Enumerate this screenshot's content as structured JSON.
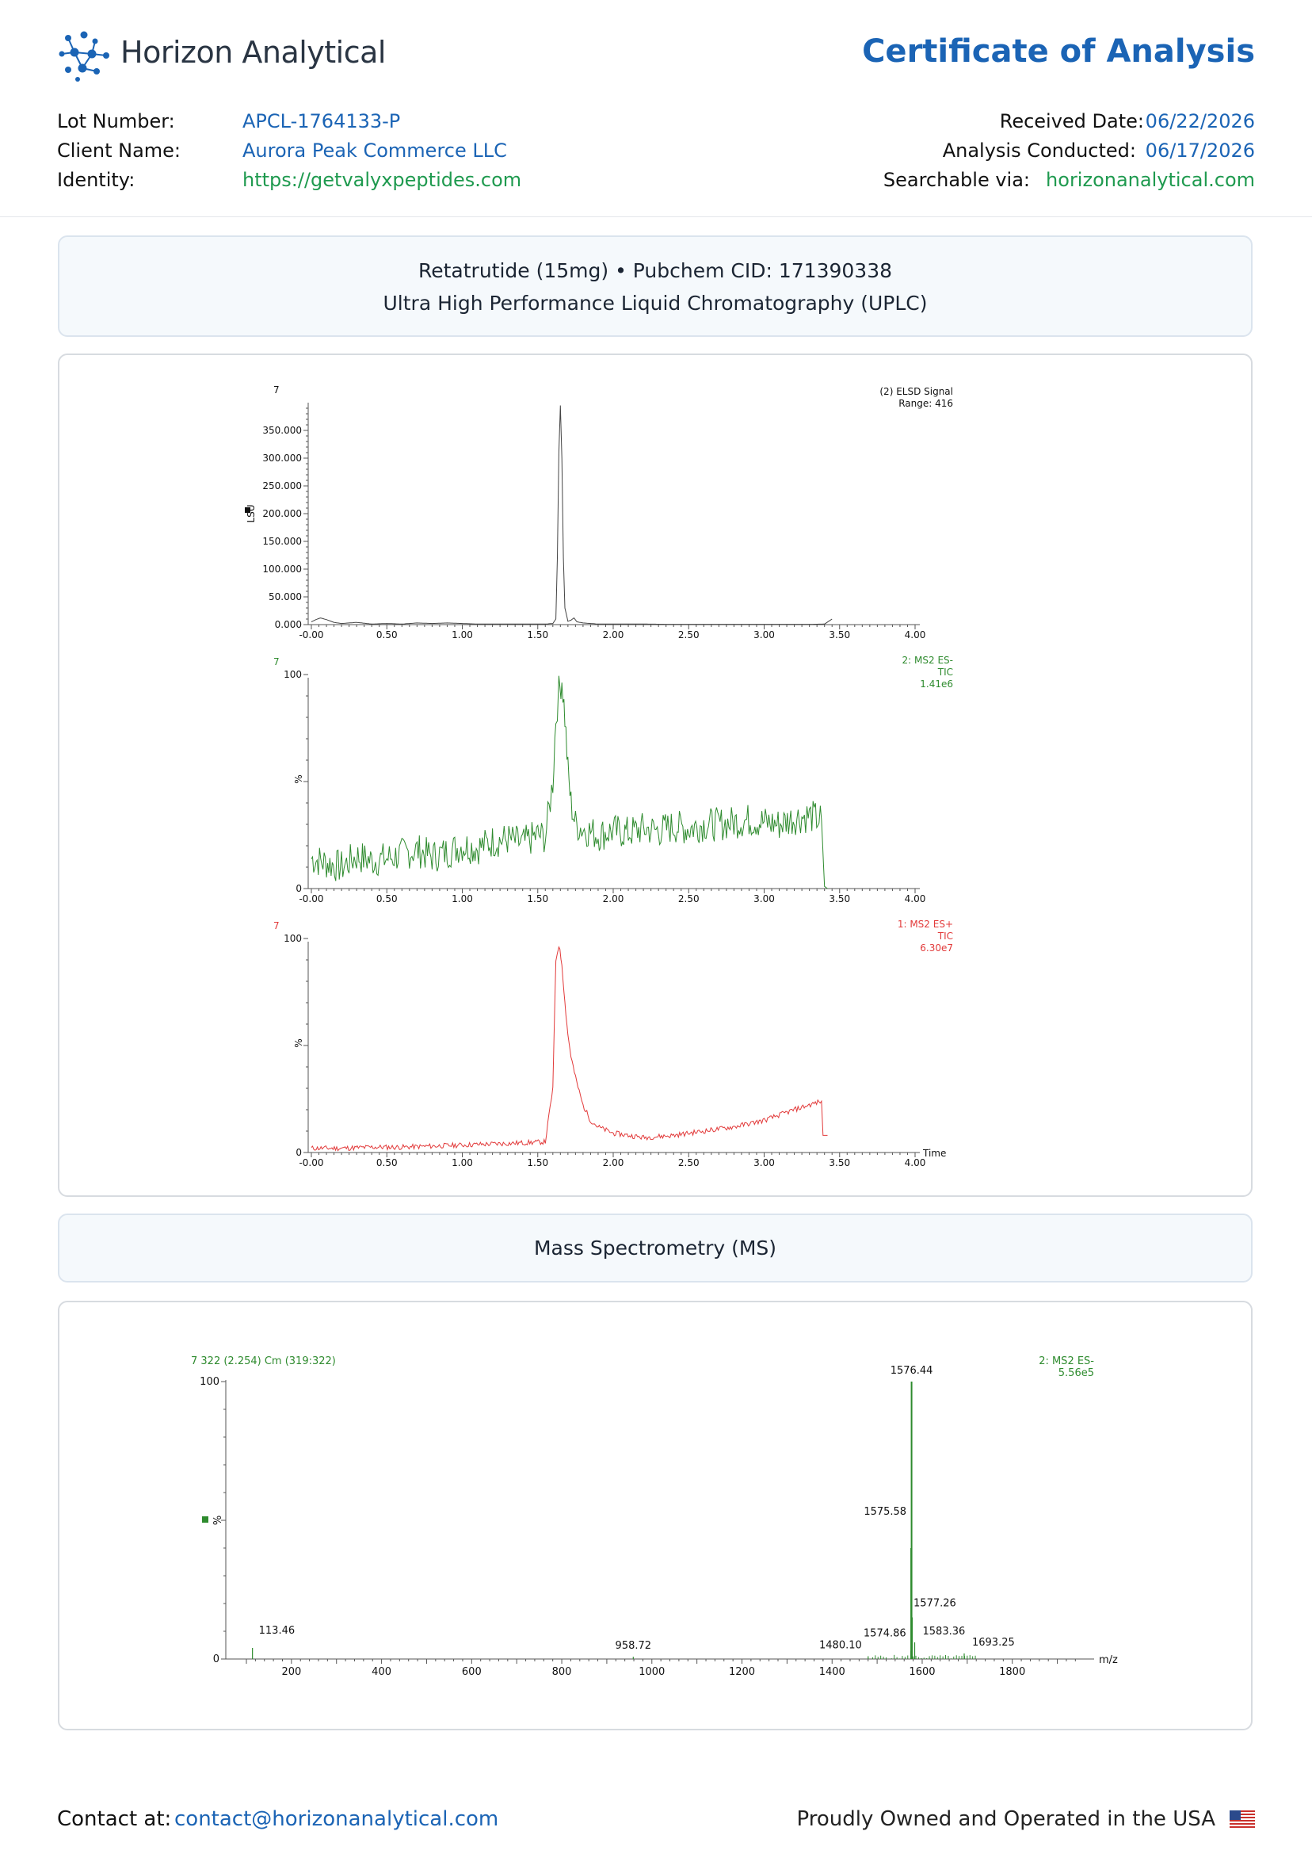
{
  "header": {
    "brand": "Horizon Analytical",
    "title": "Certificate of Analysis",
    "left_meta": [
      {
        "label": "Lot Number:",
        "value": "APCL-1764133-P",
        "color": "#1b64b5"
      },
      {
        "label": "Client Name:",
        "value": "Aurora Peak Commerce LLC",
        "color": "#1b64b5"
      },
      {
        "label": "Identity:",
        "value": "https://getvalyxpeptides.com",
        "color": "#1f9a4f"
      }
    ],
    "right_meta": [
      {
        "label": "Received Date:",
        "value": "06/22/2026",
        "color": "#1b64b5"
      },
      {
        "label": "Analysis Conducted:",
        "value": "06/17/2026",
        "color": "#1b64b5"
      },
      {
        "label": "Searchable via:",
        "value": "horizonanalytical.com",
        "color": "#1f9a4f"
      }
    ]
  },
  "uplc_box": {
    "line1": "Retatrutide (15mg) • Pubchem CID: 171390338",
    "line2": "Ultra High Performance Liquid Chromatography (UPLC)"
  },
  "ms_box": {
    "line1": "Mass Spectrometry (MS)"
  },
  "footer": {
    "contact_label": "Contact at:",
    "contact_email": "contact@horizonanalytical.com",
    "tagline": "Proudly Owned and Operated in the USA"
  },
  "chart_data": [
    {
      "type": "line",
      "panel": "elsd",
      "corner_label": "7",
      "legend": [
        "(2) ELSD Signal",
        "Range: 416"
      ],
      "ylabel": "LSU",
      "xlim": [
        0,
        4.0
      ],
      "ylim": [
        0,
        400
      ],
      "yticks": [
        "350.000",
        "300.000",
        "250.000",
        "200.000",
        "150.000",
        "100.000",
        "50.000",
        "0.000"
      ],
      "xticks": [
        "-0.00",
        "0.50",
        "1.00",
        "1.50",
        "2.00",
        "2.50",
        "3.00",
        "3.50",
        "4.00"
      ],
      "color": "#444444",
      "x": [
        0.0,
        0.03,
        0.06,
        0.1,
        0.15,
        0.2,
        0.3,
        0.4,
        0.5,
        0.6,
        0.7,
        0.8,
        0.9,
        1.0,
        1.1,
        1.2,
        1.3,
        1.4,
        1.5,
        1.55,
        1.6,
        1.62,
        1.63,
        1.64,
        1.65,
        1.66,
        1.67,
        1.68,
        1.7,
        1.72,
        1.74,
        1.76,
        1.8,
        1.9,
        2.0,
        2.2,
        2.4,
        2.6,
        2.8,
        3.0,
        3.2,
        3.3,
        3.4,
        3.45
      ],
      "y": [
        5,
        9,
        12,
        9,
        4,
        2,
        4,
        1,
        2,
        1,
        3,
        2,
        3,
        2,
        1,
        1,
        1,
        1,
        1,
        1,
        2,
        10,
        120,
        310,
        395,
        300,
        120,
        30,
        6,
        8,
        12,
        5,
        3,
        1,
        1,
        1,
        0.5,
        0.5,
        0.5,
        0.5,
        0.5,
        0.5,
        1,
        10
      ]
    },
    {
      "type": "line",
      "panel": "ms2-es-minus",
      "corner_label": "7",
      "legend": [
        "2: MS2 ES-",
        "TIC",
        "1.41e6"
      ],
      "ylabel": "%",
      "xlim": [
        0,
        4.0
      ],
      "ylim": [
        0,
        100
      ],
      "yticks": [
        "100",
        "0"
      ],
      "xticks": [
        "-0.00",
        "0.50",
        "1.00",
        "1.50",
        "2.00",
        "2.50",
        "3.00",
        "3.50",
        "4.00"
      ],
      "color": "#2e8b2e",
      "x": [
        0.0,
        0.1,
        0.2,
        0.3,
        0.4,
        0.5,
        0.6,
        0.7,
        0.8,
        0.9,
        1.0,
        1.1,
        1.2,
        1.3,
        1.4,
        1.5,
        1.55,
        1.6,
        1.62,
        1.64,
        1.66,
        1.68,
        1.7,
        1.72,
        1.75,
        1.8,
        1.9,
        2.0,
        2.1,
        2.2,
        2.3,
        2.4,
        2.5,
        2.6,
        2.7,
        2.8,
        2.9,
        3.0,
        3.1,
        3.2,
        3.3,
        3.38,
        3.4,
        3.42
      ],
      "y": [
        14,
        12,
        10,
        15,
        13,
        14,
        16,
        18,
        15,
        17,
        20,
        19,
        22,
        23,
        21,
        25,
        24,
        50,
        80,
        92,
        98,
        80,
        55,
        40,
        30,
        28,
        25,
        27,
        26,
        28,
        27,
        29,
        28,
        30,
        30,
        31,
        32,
        31,
        30,
        33,
        34,
        32,
        1,
        0
      ],
      "noise": 8
    },
    {
      "type": "line",
      "panel": "ms2-es-plus",
      "corner_label": "7",
      "legend": [
        "1: MS2 ES+",
        "TIC",
        "6.30e7"
      ],
      "ylabel": "%",
      "xlabel": "Time",
      "xlim": [
        0,
        4.0
      ],
      "ylim": [
        0,
        100
      ],
      "yticks": [
        "100",
        "0"
      ],
      "xticks": [
        "-0.00",
        "0.50",
        "1.00",
        "1.50",
        "2.00",
        "2.50",
        "3.00",
        "3.50",
        "4.00"
      ],
      "color": "#e23a3a",
      "x": [
        0.0,
        0.2,
        0.4,
        0.6,
        0.8,
        1.0,
        1.2,
        1.4,
        1.55,
        1.6,
        1.62,
        1.64,
        1.66,
        1.68,
        1.7,
        1.72,
        1.75,
        1.8,
        1.85,
        1.9,
        2.0,
        2.1,
        2.2,
        2.4,
        2.6,
        2.8,
        3.0,
        3.2,
        3.38,
        3.39,
        3.42
      ],
      "y": [
        2,
        2,
        2.5,
        2.5,
        3,
        3.5,
        4,
        4.5,
        5,
        30,
        90,
        97,
        88,
        70,
        55,
        45,
        35,
        22,
        15,
        12,
        9,
        8,
        7,
        8,
        10,
        12,
        15,
        20,
        24,
        8,
        8
      ],
      "noise": 1.2
    },
    {
      "type": "bar",
      "panel": "mass-spectrum",
      "header_label": "7 322 (2.254) Cm (319:322)",
      "legend": [
        "2: MS2 ES-",
        "5.56e5"
      ],
      "ylabel": "%",
      "xlabel": "m/z",
      "xlim": [
        100,
        1950
      ],
      "ylim": [
        0,
        100
      ],
      "yticks": [
        "100",
        "0"
      ],
      "xticks": [
        "200",
        "400",
        "600",
        "800",
        "1000",
        "1200",
        "1400",
        "1600",
        "1800"
      ],
      "peaks": [
        {
          "mz": 113.46,
          "value": 4,
          "label": "113.46"
        },
        {
          "mz": 958.72,
          "value": 0.8,
          "label": "958.72"
        },
        {
          "mz": 1480.1,
          "value": 1,
          "label": "1480.10"
        },
        {
          "mz": 1574.86,
          "value": 3,
          "label": "1574.86"
        },
        {
          "mz": 1575.58,
          "value": 40,
          "label": "1575.58"
        },
        {
          "mz": 1576.44,
          "value": 100,
          "label": "1576.44"
        },
        {
          "mz": 1577.26,
          "value": 15,
          "label": "1577.26"
        },
        {
          "mz": 1583.36,
          "value": 6,
          "label": "1583.36"
        },
        {
          "mz": 1693.25,
          "value": 2,
          "label": "1693.25"
        }
      ],
      "color": "#2e8b2e"
    }
  ]
}
